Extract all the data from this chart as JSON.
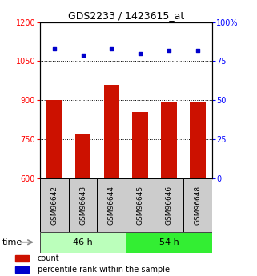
{
  "title": "GDS2233 / 1423615_at",
  "samples": [
    "GSM96642",
    "GSM96643",
    "GSM96644",
    "GSM96645",
    "GSM96646",
    "GSM96648"
  ],
  "counts": [
    900,
    770,
    960,
    855,
    890,
    895
  ],
  "percentiles": [
    83,
    79,
    83,
    80,
    82,
    82
  ],
  "groups": [
    {
      "label": "46 h",
      "indices": [
        0,
        1,
        2
      ],
      "color": "#bbffbb"
    },
    {
      "label": "54 h",
      "indices": [
        3,
        4,
        5
      ],
      "color": "#33ee33"
    }
  ],
  "ylim_left": [
    600,
    1200
  ],
  "ylim_right": [
    0,
    100
  ],
  "yticks_left": [
    600,
    750,
    900,
    1050,
    1200
  ],
  "yticks_right": [
    0,
    25,
    50,
    75,
    100
  ],
  "ytick_dotted": [
    750,
    900,
    1050
  ],
  "bar_color": "#cc1100",
  "scatter_color": "#0000cc",
  "bar_width": 0.55,
  "bar_bottom": 600,
  "xlabel": "time",
  "legend_count_label": "count",
  "legend_pct_label": "percentile rank within the sample",
  "title_fontsize": 9,
  "tick_fontsize": 7,
  "label_fontsize": 6.5,
  "group_fontsize": 8,
  "legend_fontsize": 7
}
